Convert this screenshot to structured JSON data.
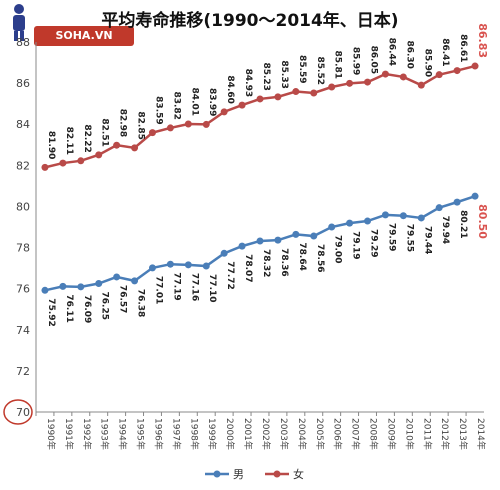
{
  "logo": {
    "text": "SOHA.VN"
  },
  "chart_data": {
    "type": "line",
    "title": "平均寿命推移(1990～2014年、日本)",
    "x": [
      "1990年",
      "1991年",
      "1992年",
      "1993年",
      "1994年",
      "1995年",
      "1996年",
      "1997年",
      "1998年",
      "1999年",
      "2000年",
      "2001年",
      "2002年",
      "2003年",
      "2004年",
      "2005年",
      "2006年",
      "2007年",
      "2008年",
      "2009年",
      "2010年",
      "2011年",
      "2012年",
      "2013年",
      "2014年"
    ],
    "yticks": [
      "70",
      "72",
      "74",
      "76",
      "78",
      "80",
      "82",
      "84",
      "86",
      "88"
    ],
    "ylim": [
      70,
      88
    ],
    "grid": false,
    "legend_placement": "bottom",
    "series": [
      {
        "name": "男",
        "color": "#4a7eb8",
        "values": [
          75.92,
          76.11,
          76.09,
          76.25,
          76.57,
          76.38,
          77.01,
          77.19,
          77.16,
          77.1,
          77.72,
          78.07,
          78.32,
          78.36,
          78.64,
          78.56,
          79.0,
          79.19,
          79.29,
          79.59,
          79.55,
          79.44,
          79.94,
          80.21,
          80.5
        ],
        "labels": [
          "75.92",
          "76.11",
          "76.09",
          "76.25",
          "76.57",
          "76.38",
          "77.01",
          "77.19",
          "77.16",
          "77.10",
          "77.72",
          "78.07",
          "78.32",
          "78.36",
          "78.64",
          "78.56",
          "79.00",
          "79.19",
          "79.29",
          "79.59",
          "79.55",
          "79.44",
          "79.94",
          "80.21",
          "80.50"
        ]
      },
      {
        "name": "女",
        "color": "#b94a48",
        "values": [
          81.9,
          82.11,
          82.22,
          82.51,
          82.98,
          82.85,
          83.59,
          83.82,
          84.01,
          83.99,
          84.6,
          84.93,
          85.23,
          85.33,
          85.59,
          85.52,
          85.81,
          85.99,
          86.05,
          86.44,
          86.3,
          85.9,
          86.41,
          86.61,
          86.83
        ],
        "labels": [
          "81.90",
          "82.11",
          "82.22",
          "82.51",
          "82.98",
          "82.85",
          "83.59",
          "83.82",
          "84.01",
          "83.99",
          "84.60",
          "84.93",
          "85.23",
          "85.33",
          "85.59",
          "85.52",
          "85.81",
          "85.99",
          "86.05",
          "86.44",
          "86.30",
          "85.90",
          "86.41",
          "86.61",
          "86.83"
        ]
      }
    ],
    "highlight_color": "#d9534f"
  }
}
